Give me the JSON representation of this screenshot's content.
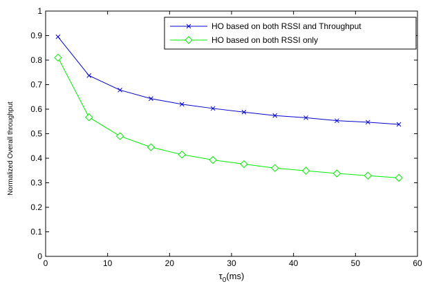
{
  "chart_data": {
    "type": "line",
    "title": "",
    "xlabel_main": "τ",
    "xlabel_sub": "0",
    "xlabel_unit": "(ms)",
    "ylabel": "Normalized Overall throughput",
    "xlim": [
      0,
      60
    ],
    "ylim": [
      0,
      1
    ],
    "xticks": [
      "0",
      "10",
      "20",
      "30",
      "40",
      "50",
      "60"
    ],
    "yticks": [
      "0",
      "0.1",
      "0.2",
      "0.3",
      "0.4",
      "0.5",
      "0.6",
      "0.7",
      "0.8",
      "0.9",
      "1"
    ],
    "grid": false,
    "legend_position": "top-right",
    "x": [
      2,
      7,
      12,
      17,
      22,
      27,
      32,
      37,
      42,
      47,
      52,
      57
    ],
    "series": [
      {
        "name": "HO based on both RSSI and Throughput",
        "color": "#0000cc",
        "marker": "x",
        "values": [
          0.895,
          0.737,
          0.678,
          0.643,
          0.62,
          0.603,
          0.588,
          0.574,
          0.565,
          0.553,
          0.547,
          0.538
        ]
      },
      {
        "name": "HO based on both RSSI only",
        "color": "#00ee00",
        "marker": "diamond",
        "values": [
          0.81,
          0.567,
          0.49,
          0.445,
          0.415,
          0.393,
          0.376,
          0.36,
          0.349,
          0.338,
          0.329,
          0.32
        ]
      }
    ]
  }
}
